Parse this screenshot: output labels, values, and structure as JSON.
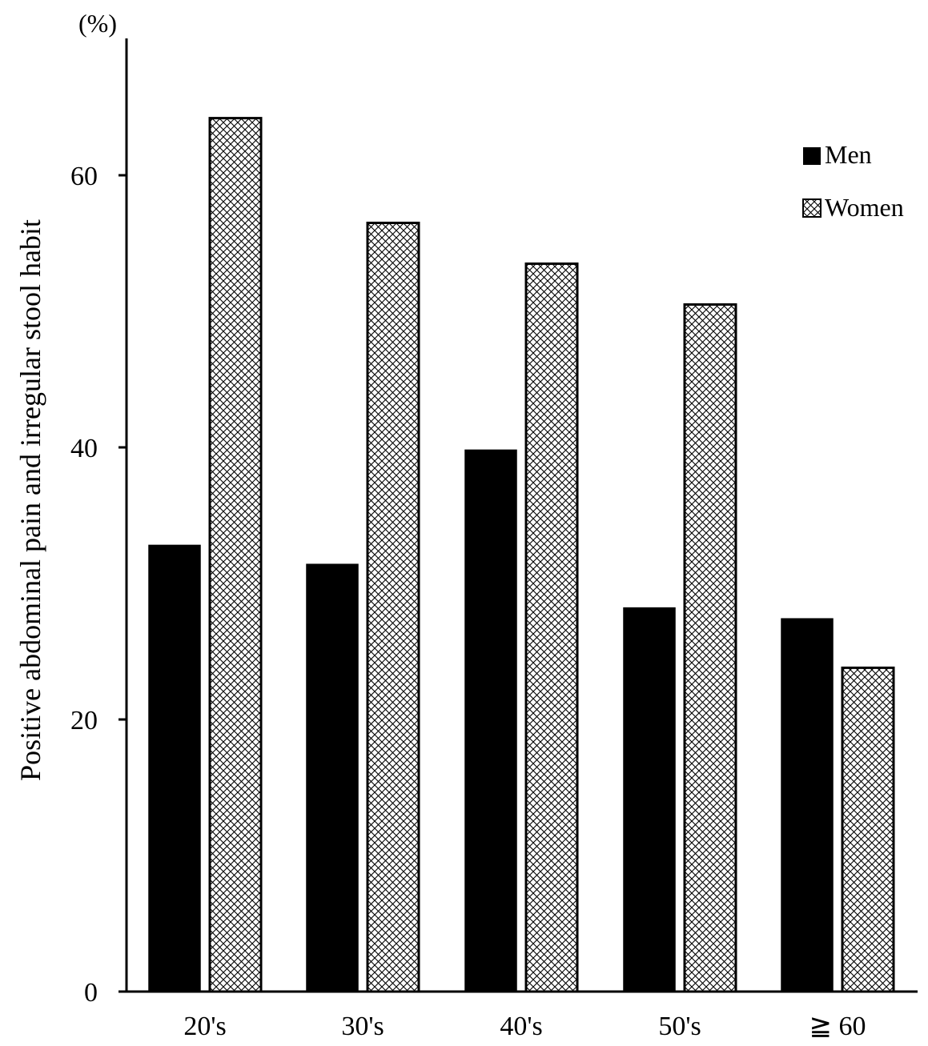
{
  "chart_data": {
    "type": "bar",
    "title": "",
    "xlabel": "",
    "ylabel": "Positive abdominal pain and irregular stool habit",
    "unit": "(%)",
    "categories": [
      "20's",
      "30's",
      "40's",
      "50's",
      "≧ 60"
    ],
    "series": [
      {
        "name": "Men",
        "values": [
          32.8,
          31.4,
          39.8,
          28.2,
          27.4
        ],
        "color": "#000000",
        "pattern": "solid"
      },
      {
        "name": "Women",
        "values": [
          64.2,
          56.5,
          53.5,
          50.5,
          23.8
        ],
        "color": "#ffffff",
        "pattern": "crosshatch"
      }
    ],
    "yticks": [
      0,
      20,
      40,
      60
    ],
    "ylim": [
      0,
      70
    ],
    "grid": false,
    "legend_position": "top-right"
  }
}
